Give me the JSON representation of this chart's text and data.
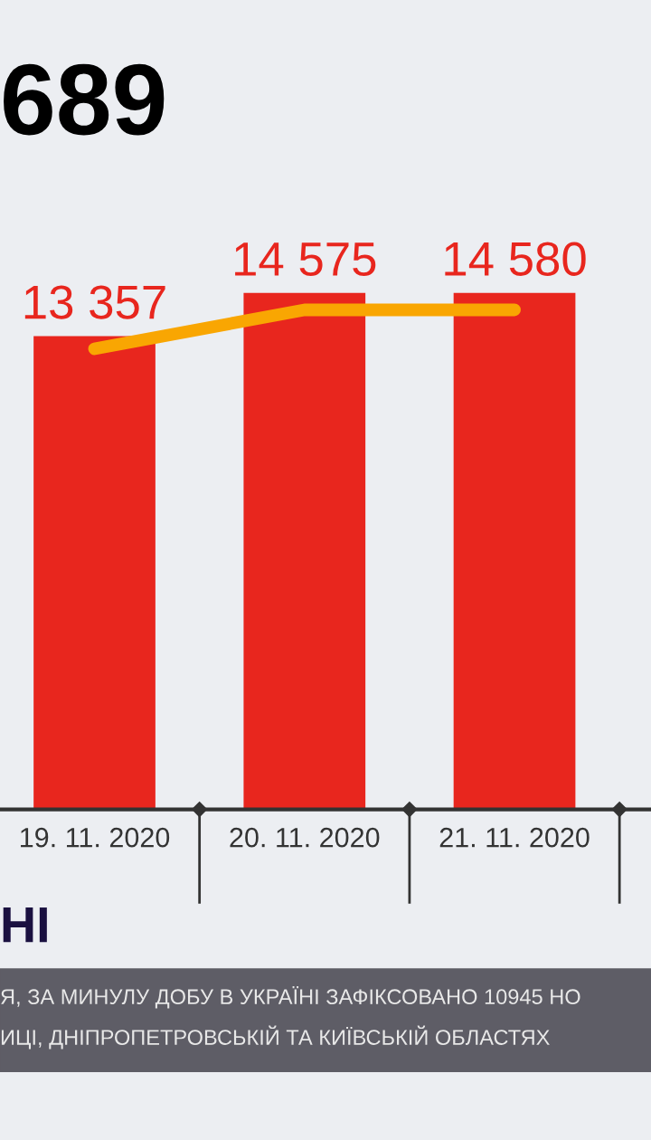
{
  "chart_data": {
    "type": "bar",
    "categories": [
      "19. 11. 2020",
      "20. 11. 2020",
      "21. 11. 2020"
    ],
    "series": [
      {
        "color": "#e8261e",
        "values": [
          13357,
          14575,
          14580
        ],
        "value_labels": [
          "13 357",
          "14 575",
          "14 580"
        ]
      },
      {
        "type": "line",
        "color": "#f9a602",
        "values": [
          13000,
          14100,
          14100
        ]
      }
    ],
    "annotations": [
      "689",
      "НІ",
      "Я, ЗА МИНУЛУ ДОБУ В УКРАЇНІ ЗАФІКСОВАНО 10945 НО",
      "ИЦІ, ДНІПРОПЕТРОВСЬКІЙ ТА КИЇВСЬКІЙ ОБЛАСТЯХ"
    ],
    "grid": false,
    "legend": false
  }
}
